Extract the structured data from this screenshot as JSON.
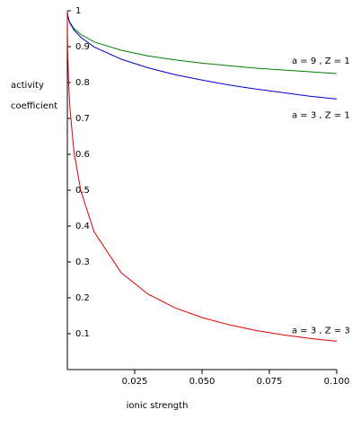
{
  "chart_data": {
    "type": "line",
    "ylabel": [
      "activity",
      "coefficient"
    ],
    "xlabel": "ionic strength",
    "x": [
      0,
      0.0001,
      0.0005,
      0.001,
      0.0025,
      0.005,
      0.01,
      0.02,
      0.03,
      0.04,
      0.05,
      0.06,
      0.07,
      0.08,
      0.09,
      0.1
    ],
    "series": [
      {
        "name": "a = 9 , Z = 1",
        "color": "#008000",
        "values": [
          1,
          0.99,
          0.976,
          0.967,
          0.95,
          0.934,
          0.913,
          0.89,
          0.874,
          0.863,
          0.854,
          0.847,
          0.84,
          0.835,
          0.83,
          0.825
        ]
      },
      {
        "name": "a = 3 , Z = 1",
        "color": "#0000cc",
        "values": [
          1,
          0.99,
          0.975,
          0.965,
          0.946,
          0.926,
          0.899,
          0.865,
          0.841,
          0.822,
          0.807,
          0.793,
          0.782,
          0.772,
          0.762,
          0.754
        ]
      },
      {
        "name": "a = 3 , Z = 3",
        "color": "#e00000",
        "values": [
          1,
          0.9,
          0.794,
          0.724,
          0.605,
          0.498,
          0.383,
          0.27,
          0.21,
          0.172,
          0.145,
          0.125,
          0.109,
          0.097,
          0.087,
          0.079
        ]
      }
    ],
    "xlim": [
      0,
      0.1
    ],
    "ylim": [
      0,
      1
    ],
    "xticks": [
      0.025,
      {
        "value": 0.05,
        "label": "0.050"
      },
      0.075,
      {
        "value": 0.1,
        "label": "0.100"
      }
    ],
    "yticks": [
      0.1,
      0.2,
      0.3,
      0.4,
      0.5,
      0.6,
      0.7,
      0.8,
      0.9,
      1
    ],
    "grid": false
  }
}
